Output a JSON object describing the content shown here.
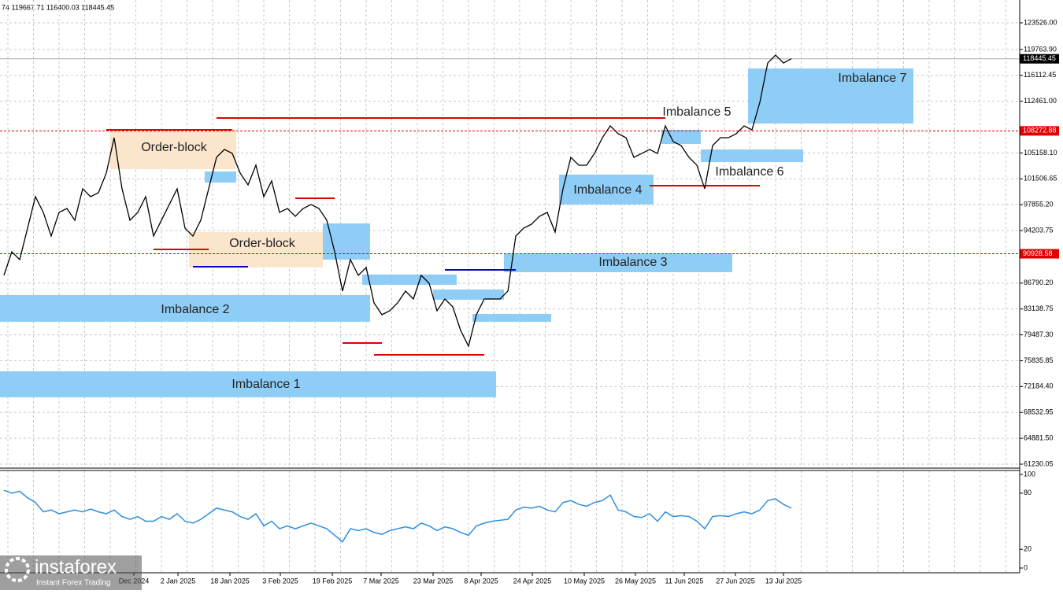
{
  "chart_data": {
    "type": "line",
    "header": "74 119667.71 116400.03 118445.45",
    "price_color": "#000000",
    "values": [
      87880,
      91210,
      90100,
      94540,
      98990,
      96770,
      93430,
      96770,
      97320,
      95660,
      100100,
      98990,
      99540,
      102320,
      107310,
      100100,
      95660,
      96770,
      98990,
      93430,
      95660,
      97880,
      100100,
      94540,
      93430,
      95660,
      100100,
      104540,
      105650,
      105090,
      102320,
      100650,
      103430,
      98990,
      101210,
      96770,
      97320,
      96210,
      97320,
      97880,
      97320,
      95660,
      91210,
      85660,
      90100,
      87880,
      88990,
      84000,
      82330,
      82890,
      84000,
      85660,
      84550,
      87880,
      86770,
      82890,
      84550,
      83440,
      80110,
      77890,
      82330,
      84550,
      84550,
      84550,
      85660,
      93430,
      94540,
      95100,
      96210,
      96770,
      93990,
      100100,
      104540,
      103430,
      103430,
      105090,
      107310,
      108980,
      107870,
      107310,
      104540,
      105090,
      105650,
      105090,
      108980,
      106760,
      106200,
      104540,
      103430,
      100100,
      106200,
      107310,
      107310,
      107870,
      108980,
      108420,
      112310,
      117860,
      118970,
      117860,
      118450
    ],
    "ylim": [
      60675,
      126746
    ],
    "yticks": [
      {
        "value": 123526.0,
        "label": "123526.00"
      },
      {
        "value": 119763.9,
        "label": "119763.90"
      },
      116112.45,
      {
        "value": 112461.0,
        "label": "112461.00"
      },
      {
        "value": 105158.1,
        "label": "105158.10"
      },
      101506.65,
      {
        "value": 97855.2,
        "label": "97855.20"
      },
      94203.75,
      {
        "value": 86790.2,
        "label": "86790.20"
      },
      83138.75,
      {
        "value": 79487.3,
        "label": "79487.30"
      },
      75835.85,
      {
        "value": 72184.4,
        "label": "72184.40"
      },
      68532.95,
      {
        "value": 64881.5,
        "label": "64881.50"
      },
      61230.05
    ],
    "grid": true,
    "levels": [
      108272.88,
      90928.58
    ],
    "level_color": "#e00000",
    "current_price": 118445.45,
    "zone_color": "#8ecdf6",
    "zones": [
      {
        "label": "Imbalance 1",
        "low": 70670,
        "high": 74340,
        "start": 0,
        "end": 62
      },
      {
        "label": "Imbalance 2",
        "low": 81330,
        "high": 85110,
        "start": 0,
        "end": 46
      },
      {
        "label": "Imbalance 3",
        "low": 88330,
        "high": 90990,
        "start": 64,
        "end": 92
      },
      {
        "label": "Imbalance 4",
        "low": 97880,
        "high": 102100,
        "start": 71,
        "end": 82
      },
      {
        "label": "Imbalance 5",
        "low": 106430,
        "high": 108420,
        "start": 84,
        "end": 88
      },
      {
        "label": "Imbalance 6",
        "low": 103870,
        "high": 105650,
        "start": 89,
        "end": 101
      },
      {
        "label": "Imbalance 7",
        "low": 109310,
        "high": 117080,
        "start": 95,
        "end": 115
      },
      {
        "low": 100980,
        "high": 102540,
        "start": 26,
        "end": 29
      },
      {
        "low": 90100,
        "high": 95210,
        "start": 41,
        "end": 46
      },
      {
        "low": 86550,
        "high": 88000,
        "start": 46,
        "end": 57
      },
      {
        "low": 84440,
        "high": 85880,
        "start": 55,
        "end": 63
      },
      {
        "low": 81330,
        "high": 82440,
        "start": 60,
        "end": 69
      }
    ],
    "order_block_color": "#fbe6cc",
    "order_blocks": [
      {
        "label": "Order-block",
        "low": 102870,
        "high": 108420,
        "start": 14,
        "end": 29
      },
      {
        "label": "Order-block",
        "low": 88990,
        "high": 93990,
        "start": 24,
        "end": 40
      }
    ],
    "red_lines": [
      {
        "price": 110090,
        "start": 27,
        "end": 84
      },
      {
        "price": 108420,
        "start": 13,
        "end": 29
      },
      {
        "price": 98760,
        "start": 37,
        "end": 42
      },
      {
        "price": 91550,
        "start": 19,
        "end": 26
      },
      {
        "price": 78330,
        "start": 43,
        "end": 48
      },
      {
        "price": 76670,
        "start": 47,
        "end": 61
      },
      {
        "price": 100540,
        "start": 82,
        "end": 96
      }
    ],
    "blue_lines": [
      {
        "price": 89100,
        "start": 24,
        "end": 31
      },
      {
        "price": 88660,
        "start": 56,
        "end": 65
      }
    ],
    "x_labels": [
      "Dec 2024",
      "2 Jan 2025",
      "18 Jan 2025",
      "3 Feb 2025",
      "19 Feb 2025",
      "7 Mar 2025",
      "23 Mar 2025",
      "8 Apr 2025",
      "24 Apr 2025",
      "10 May 2025",
      "26 May 2025",
      "11 Jun 2025",
      "27 Jun 2025",
      "13 Jul 2025"
    ],
    "oscillator": {
      "color": "#2e8fe0",
      "values": [
        83,
        80,
        82,
        75,
        70,
        60,
        62,
        58,
        60,
        62,
        60,
        63,
        60,
        58,
        62,
        55,
        52,
        55,
        50,
        50,
        55,
        52,
        58,
        50,
        48,
        52,
        58,
        64,
        62,
        60,
        55,
        52,
        58,
        45,
        50,
        42,
        45,
        42,
        45,
        48,
        45,
        42,
        35,
        28,
        42,
        40,
        42,
        38,
        36,
        40,
        42,
        44,
        42,
        48,
        45,
        40,
        44,
        42,
        38,
        35,
        45,
        48,
        50,
        51,
        52,
        62,
        65,
        64,
        66,
        62,
        60,
        70,
        72,
        68,
        66,
        70,
        72,
        78,
        62,
        60,
        55,
        54,
        58,
        50,
        60,
        55,
        56,
        55,
        50,
        42,
        55,
        56,
        55,
        58,
        60,
        58,
        62,
        72,
        74,
        68,
        64
      ],
      "ylim": [
        0,
        100
      ],
      "yticks": [
        100,
        80,
        20,
        0
      ]
    },
    "watermark": {
      "brand": "instaforex",
      "tagline": "Instant Forex Trading"
    }
  }
}
